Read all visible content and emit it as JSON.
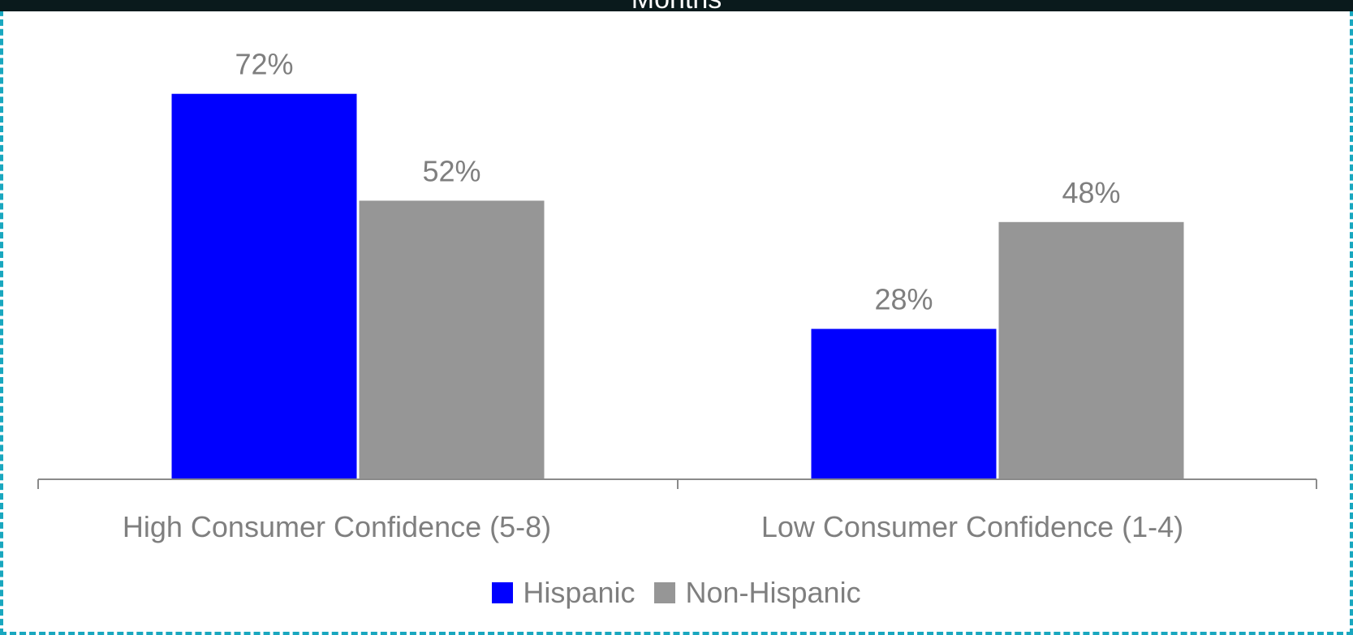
{
  "chart_data": {
    "type": "bar",
    "title": "Months",
    "categories": [
      "High Consumer Confidence (5-8)",
      "Low Consumer Confidence (1-4)"
    ],
    "series": [
      {
        "name": "Hispanic",
        "values": [
          72,
          28
        ],
        "labels": [
          "72%",
          "28%"
        ],
        "color": "#0000ff"
      },
      {
        "name": "Non-Hispanic",
        "values": [
          52,
          48
        ],
        "labels": [
          "52%",
          "48%"
        ],
        "color": "#969696"
      }
    ],
    "ylim": [
      0,
      80
    ],
    "grid": false,
    "legend_position": "bottom"
  }
}
